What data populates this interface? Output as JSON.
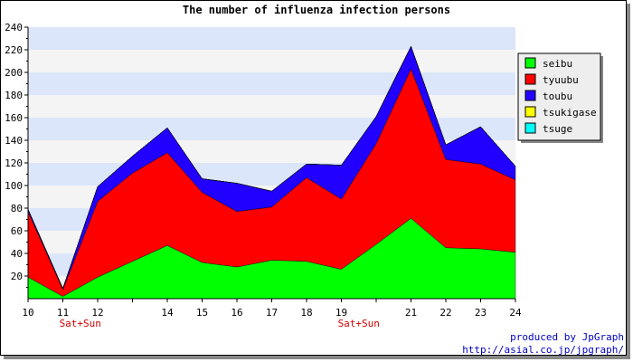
{
  "chart_data": {
    "type": "area",
    "stacked": true,
    "title": "The number of influenza infection persons",
    "x": [
      10,
      11,
      12,
      13,
      14,
      15,
      16,
      17,
      18,
      19,
      20,
      21,
      22,
      23,
      24
    ],
    "x_tick_labels": [
      "10",
      "11",
      "12",
      "14",
      "15",
      "16",
      "17",
      "18",
      "19",
      "21",
      "22",
      "23",
      "24"
    ],
    "weekend_markers": [
      {
        "label": "Sat+Sun",
        "after_day": 11
      },
      {
        "label": "Sat+Sun",
        "after_day": 19
      }
    ],
    "ylim": [
      0,
      240
    ],
    "y_ticks": [
      20,
      40,
      60,
      80,
      100,
      120,
      140,
      160,
      180,
      200,
      220,
      240
    ],
    "grid": "horizontal alternating bands",
    "legend_position": "right",
    "series": [
      {
        "name": "seibu",
        "color": "#00ff00",
        "values": [
          19,
          2,
          19,
          33,
          47,
          32,
          28,
          34,
          33,
          26,
          48,
          71,
          45,
          44,
          41
        ]
      },
      {
        "name": "tyuubu",
        "color": "#ff0000",
        "values": [
          58,
          6,
          67,
          78,
          82,
          62,
          49,
          47,
          74,
          62,
          89,
          132,
          78,
          75,
          64
        ]
      },
      {
        "name": "toubu",
        "color": "#2200ff",
        "values": [
          2,
          1,
          13,
          15,
          22,
          12,
          25,
          14,
          12,
          30,
          24,
          20,
          13,
          33,
          12
        ]
      },
      {
        "name": "tsukigase",
        "color": "#ffff00",
        "values": [
          0,
          0,
          0,
          0,
          0,
          0,
          0,
          0,
          0,
          0,
          0,
          0,
          0,
          0,
          0
        ]
      },
      {
        "name": "tsuge",
        "color": "#00ffff",
        "values": [
          0,
          0,
          0,
          0,
          0,
          0,
          0,
          0,
          0,
          0,
          0,
          0,
          0,
          0,
          0
        ]
      }
    ]
  },
  "credits": {
    "line1": "produced by JpGraph",
    "line2": "http://asial.co.jp/jpgraph/"
  }
}
